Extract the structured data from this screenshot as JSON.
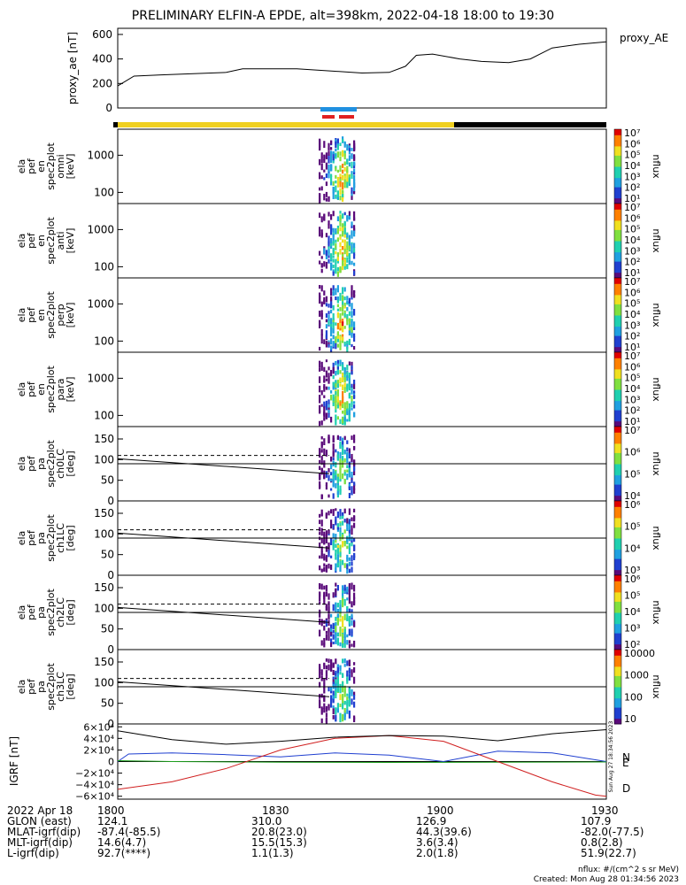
{
  "title": "PRELIMINARY ELFIN-A EPDE, alt=398km, 2022-04-18 18:00 to 19:30",
  "chart_data": [
    {
      "id": "proxy_ae",
      "type": "line",
      "ylabel": "proxy_ae [nT]",
      "legend": "proxy_AE",
      "ylim": [
        0,
        650
      ],
      "yticks": [
        "600",
        "400",
        "200",
        "0"
      ],
      "x_minutes": [
        0,
        3,
        8,
        20,
        23,
        33,
        40,
        45,
        50,
        53,
        55,
        58,
        63,
        67,
        72,
        76,
        80,
        85,
        90
      ],
      "values": [
        180,
        260,
        270,
        290,
        320,
        320,
        300,
        285,
        290,
        340,
        430,
        440,
        400,
        380,
        370,
        400,
        490,
        520,
        540
      ]
    },
    {
      "id": "spectra_en",
      "type": "heatmap",
      "panels": [
        {
          "label": [
            "ela",
            "pef",
            "en",
            "spec2plot",
            "omni",
            "[keV]"
          ],
          "yticks": [
            "1000",
            "100"
          ],
          "cbar": [
            "10⁷",
            "10⁶",
            "10⁵",
            "10⁴",
            "10³",
            "10²",
            "10¹"
          ]
        },
        {
          "label": [
            "ela",
            "pef",
            "en",
            "spec2plot",
            "anti",
            "[keV]"
          ],
          "yticks": [
            "1000",
            "100"
          ],
          "cbar": [
            "10⁷",
            "10⁶",
            "10⁵",
            "10⁴",
            "10³",
            "10²",
            "10¹"
          ]
        },
        {
          "label": [
            "ela",
            "pef",
            "en",
            "spec2plot",
            "perp",
            "[keV]"
          ],
          "yticks": [
            "1000",
            "100"
          ],
          "cbar": [
            "10⁷",
            "10⁶",
            "10⁵",
            "10⁴",
            "10³",
            "10²",
            "10¹"
          ]
        },
        {
          "label": [
            "ela",
            "pef",
            "en",
            "spec2plot",
            "para",
            "[keV]"
          ],
          "yticks": [
            "1000",
            "100"
          ],
          "cbar": [
            "10⁷",
            "10⁶",
            "10⁵",
            "10⁴",
            "10³",
            "10²",
            "10¹"
          ]
        }
      ],
      "zlabel": "nflux"
    },
    {
      "id": "spectra_pa",
      "type": "heatmap",
      "panels": [
        {
          "label": [
            "ela",
            "pef",
            "pa",
            "spec2plot",
            "ch0LC",
            "[deg]"
          ],
          "yticks": [
            "150",
            "100",
            "50",
            "0"
          ],
          "cbar": [
            "10⁷",
            "10⁶",
            "10⁵",
            "10⁴"
          ]
        },
        {
          "label": [
            "ela",
            "pef",
            "pa",
            "spec2plot",
            "ch1LC",
            "[deg]"
          ],
          "yticks": [
            "150",
            "100",
            "50",
            "0"
          ],
          "cbar": [
            "10⁶",
            "10⁵",
            "10⁴",
            "10³"
          ]
        },
        {
          "label": [
            "ela",
            "pef",
            "pa",
            "spec2plot",
            "ch2LC",
            "[deg]"
          ],
          "yticks": [
            "150",
            "100",
            "50",
            "0"
          ],
          "cbar": [
            "10⁶",
            "10⁵",
            "10⁴",
            "10³",
            "10²"
          ]
        },
        {
          "label": [
            "ela",
            "pef",
            "pa",
            "spec2plot",
            "ch3LC",
            "[deg]"
          ],
          "yticks": [
            "150",
            "100",
            "50",
            "0"
          ],
          "cbar": [
            "10000",
            "1000",
            "100",
            "10"
          ]
        }
      ],
      "zlabel": "nflux"
    },
    {
      "id": "igrf",
      "type": "line",
      "ylabel": "IGRF [nT]",
      "yticks": [
        "6×10⁴",
        "4×10⁴",
        "2×10⁴",
        "0",
        "−2×10⁴",
        "−4×10⁴",
        "−6×10⁴"
      ],
      "ylim": [
        -65000,
        65000
      ],
      "series": [
        {
          "name": "N",
          "color": "#1f3fd0",
          "x_minutes": [
            0,
            2,
            10,
            20,
            30,
            40,
            50,
            60,
            70,
            80,
            90
          ],
          "values": [
            0,
            13000,
            15000,
            12000,
            8000,
            15000,
            11000,
            0,
            18000,
            15000,
            0
          ]
        },
        {
          "name": "E",
          "color": "#1fa01f",
          "x_minutes": [
            0,
            10,
            30,
            50,
            70,
            90
          ],
          "values": [
            1500,
            0,
            -1000,
            -1500,
            -1200,
            -800
          ]
        },
        {
          "name": "D",
          "color": "#d01f1f",
          "x_minutes": [
            0,
            10,
            20,
            30,
            40,
            50,
            60,
            70,
            80,
            88,
            90
          ],
          "values": [
            -48000,
            -35000,
            -12000,
            20000,
            40000,
            45000,
            35000,
            0,
            -35000,
            -58000,
            -60000
          ]
        },
        {
          "name": "",
          "color": "#000000",
          "x_minutes": [
            0,
            10,
            20,
            30,
            40,
            50,
            60,
            70,
            80,
            90
          ],
          "values": [
            53000,
            38000,
            30000,
            35000,
            42000,
            45000,
            44000,
            36000,
            48000,
            55000
          ]
        }
      ],
      "side_text": "Sun Aug 27 18:34:56 2023"
    }
  ],
  "time_axis": {
    "ticks": [
      "1800",
      "1830",
      "1900",
      "1930"
    ],
    "date": "2022 Apr 18"
  },
  "ephemeris": [
    {
      "label": "GLON (east)",
      "values": [
        "124.1",
        "310.0",
        "126.9",
        "107.9"
      ]
    },
    {
      "label": "MLAT-igrf(dip)",
      "values": [
        "-87.4(-85.5)",
        "20.8(23.0)",
        "44.3(39.6)",
        "-82.0(-77.5)"
      ]
    },
    {
      "label": "MLT-igrf(dip)",
      "values": [
        "14.6(4.7)",
        "15.5(15.3)",
        "3.6(3.4)",
        "0.8(2.8)"
      ]
    },
    {
      "label": "L-igrf(dip)",
      "values": [
        "92.7(****)",
        "1.1(1.3)",
        "2.0(1.8)",
        "51.9(22.7)"
      ]
    }
  ],
  "footer": {
    "units": "nflux: #/(cm^2 s sr MeV)",
    "created": "Created: Mon Aug 28 01:34:56 2023"
  },
  "colors": {
    "sunlight_bar": "#f0d020",
    "eclipse_bar": "#000000",
    "burst_bar": "#2090e0",
    "fgm_bar": "#e02020"
  }
}
